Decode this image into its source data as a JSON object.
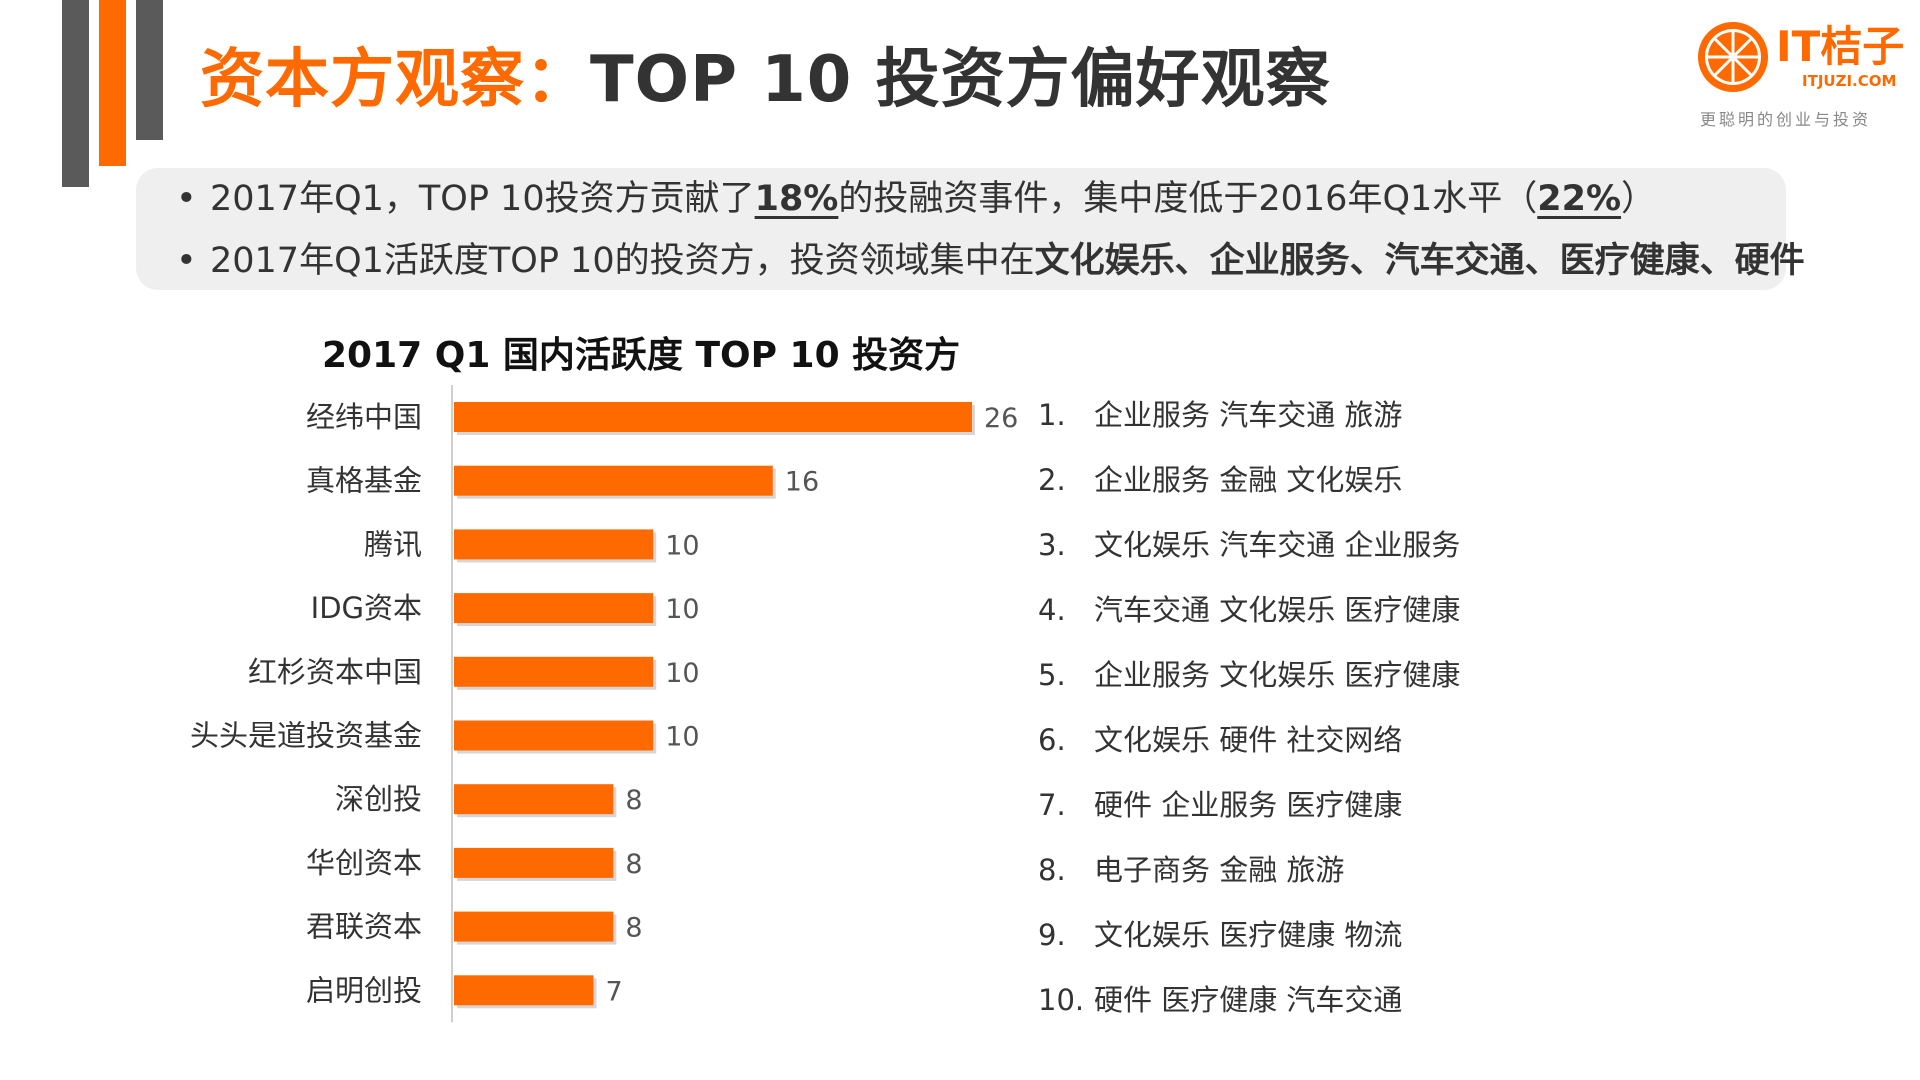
{
  "header": {
    "title_accent": "资本方观察：",
    "title_rest": "TOP 10 投资方偏好观察"
  },
  "logo": {
    "brand": "IT桔子",
    "domain": "ITJUZI.COM",
    "tagline": "更聪明的创业与投资"
  },
  "bullets": [
    {
      "p1": "2017年Q1，TOP 10投资方贡献了",
      "em1": "18%",
      "p2": "的投融资事件，集中度低于2016年Q1水平（",
      "em2": "22%",
      "p3": "）"
    },
    {
      "p1": "2017年Q1活跃度TOP 10的投资方，投资领域集中在",
      "em1": "文化娱乐、企业服务、汽车交通、医疗健康、硬件"
    }
  ],
  "colors": {
    "accent": "#ff6a00",
    "dark": "#5a5a5a",
    "panel": "#efefef"
  },
  "chart_data": {
    "type": "bar",
    "orientation": "horizontal",
    "title": "2017 Q1 国内活跃度 TOP 10 投资方",
    "categories": [
      "经纬中国",
      "真格基金",
      "腾讯",
      "IDG资本",
      "红杉资本中国",
      "头头是道投资基金",
      "深创投",
      "华创资本",
      "君联资本",
      "启明创投"
    ],
    "values": [
      26,
      16,
      10,
      10,
      10,
      10,
      8,
      8,
      8,
      7
    ],
    "xlim": [
      0,
      26
    ],
    "color": "#ff6a00",
    "data_labels": true,
    "grid": false,
    "legend": "none"
  },
  "sectors": [
    {
      "num": "1.",
      "text": "企业服务 汽车交通 旅游"
    },
    {
      "num": "2.",
      "text": "企业服务 金融 文化娱乐"
    },
    {
      "num": "3.",
      "text": "文化娱乐 汽车交通 企业服务"
    },
    {
      "num": "4.",
      "text": "汽车交通 文化娱乐 医疗健康"
    },
    {
      "num": "5.",
      "text": "企业服务 文化娱乐 医疗健康"
    },
    {
      "num": "6.",
      "text": "文化娱乐 硬件 社交网络"
    },
    {
      "num": "7.",
      "text": "硬件 企业服务 医疗健康"
    },
    {
      "num": "8.",
      "text": "电子商务 金融 旅游"
    },
    {
      "num": "9.",
      "text": "文化娱乐 医疗健康 物流"
    },
    {
      "num": "10.",
      "text": "硬件 医疗健康 汽车交通"
    }
  ]
}
